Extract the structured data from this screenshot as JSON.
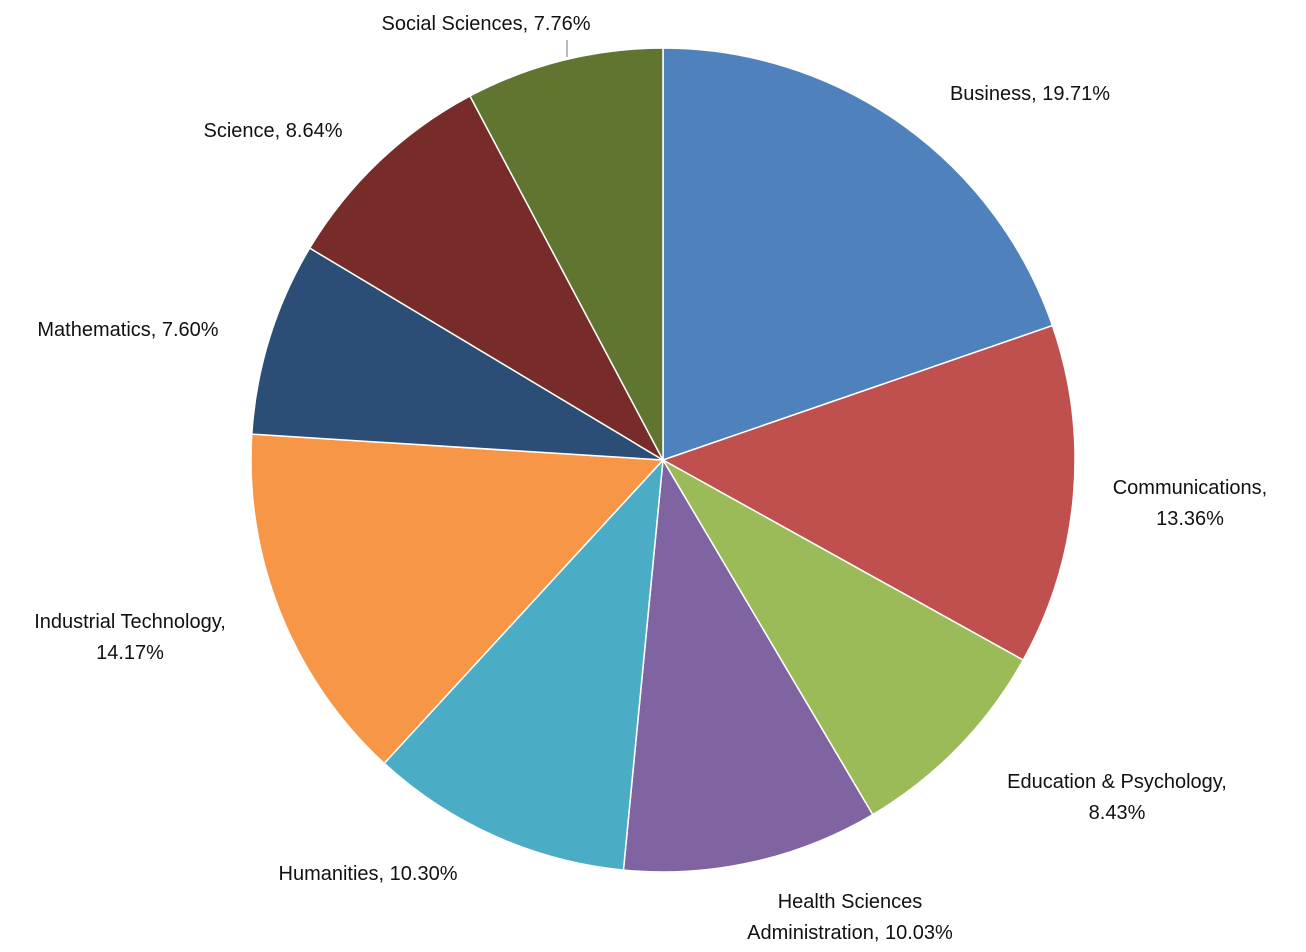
{
  "chart_data": {
    "type": "pie",
    "title": "",
    "start_angle_deg": 0,
    "direction": "clockwise",
    "slices": [
      {
        "label": "Business",
        "value": 19.71,
        "display": "19.71%",
        "color": "#4F81BD"
      },
      {
        "label": "Communications",
        "value": 13.36,
        "display": "13.36%",
        "color": "#C0504D"
      },
      {
        "label": "Education & Psychology",
        "value": 8.43,
        "display": "8.43%",
        "color": "#9BBB59"
      },
      {
        "label": "Health Sciences Administration",
        "value": 10.03,
        "display": "10.03%",
        "color": "#8064A2"
      },
      {
        "label": "Humanities",
        "value": 10.3,
        "display": "10.30%",
        "color": "#4BACC6"
      },
      {
        "label": "Industrial Technology",
        "value": 14.17,
        "display": "14.17%",
        "color": "#F79646"
      },
      {
        "label": "Mathematics",
        "value": 7.6,
        "display": "7.60%",
        "color": "#2C4D75"
      },
      {
        "label": "Science",
        "value": 8.64,
        "display": "8.64%",
        "color": "#772C2A"
      },
      {
        "label": "Social Sciences",
        "value": 7.76,
        "display": "7.76%",
        "color": "#5F7530"
      }
    ],
    "data_labels": [
      {
        "lines": [
          "Business, 19.71%"
        ]
      },
      {
        "lines": [
          "Communications,",
          "13.36%"
        ]
      },
      {
        "lines": [
          "Education & Psychology,",
          "8.43%"
        ]
      },
      {
        "lines": [
          "Health Sciences",
          "Administration, 10.03%"
        ]
      },
      {
        "lines": [
          "Humanities, 10.30%"
        ]
      },
      {
        "lines": [
          "Industrial Technology,",
          "14.17%"
        ]
      },
      {
        "lines": [
          "Mathematics, 7.60%"
        ]
      },
      {
        "lines": [
          "Science, 8.64%"
        ]
      },
      {
        "lines": [
          "Social Sciences, 7.76%"
        ]
      }
    ],
    "legend": "none"
  }
}
